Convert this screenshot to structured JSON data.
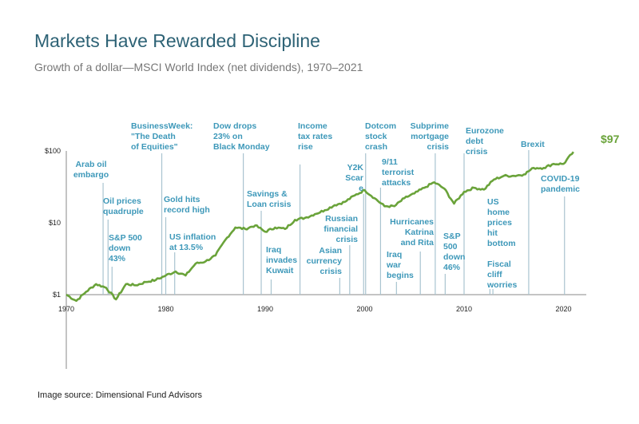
{
  "title": "Markets Have Rewarded Discipline",
  "subtitle": "Growth of a dollar—MSCI World Index (net dividends), 1970–2021",
  "source": "Image source: Dimensional Fund Advisors",
  "chart_data": {
    "type": "line",
    "yscale": "log",
    "ylim": [
      1,
      100
    ],
    "xlim": [
      1970,
      2022
    ],
    "y_ticks": [
      "$1",
      "$10",
      "$100"
    ],
    "x_ticks": [
      "1970",
      "1980",
      "1990",
      "2000",
      "2010",
      "2020"
    ],
    "line_color": "#6aa33a",
    "annotation_color": "#3d98b9",
    "final_label": "$97",
    "x": [
      1970,
      1971,
      1972,
      1973,
      1974,
      1975,
      1976,
      1977,
      1978,
      1979,
      1980,
      1981,
      1982,
      1983,
      1984,
      1985,
      1986,
      1987,
      1988,
      1989,
      1990,
      1991,
      1992,
      1993,
      1994,
      1995,
      1996,
      1997,
      1998,
      1999,
      2000,
      2001,
      2002,
      2003,
      2004,
      2005,
      2006,
      2007,
      2008,
      2009,
      2010,
      2011,
      2012,
      2013,
      2014,
      2015,
      2016,
      2017,
      2018,
      2019,
      2020,
      2021
    ],
    "values": [
      1,
      0.82,
      1.1,
      1.4,
      1.25,
      0.86,
      1.4,
      1.35,
      1.5,
      1.6,
      1.85,
      2.1,
      1.85,
      2.7,
      2.9,
      3.5,
      5.8,
      8.6,
      8.2,
      9.2,
      7.5,
      8.6,
      8.2,
      11,
      11.7,
      13.2,
      15,
      17.6,
      19.5,
      24,
      28.5,
      22,
      17,
      17,
      22,
      25.6,
      30.7,
      36.6,
      30,
      18.5,
      27,
      30.7,
      29,
      40,
      45,
      45,
      47,
      58,
      58,
      66,
      66,
      97
    ],
    "events": [
      {
        "year": 1973.7,
        "label": "Arab oil\nembargo"
      },
      {
        "year": 1974.2,
        "label": "Oil prices\nquadruple"
      },
      {
        "year": 1974.6,
        "label": "S&P 500\ndown\n43%"
      },
      {
        "year": 1979.6,
        "label": "BusinessWeek:\n\"The Death\nof Equities\""
      },
      {
        "year": 1980.0,
        "label": "Gold hits\nrecord high"
      },
      {
        "year": 1980.9,
        "label": "US inflation\nat 13.5%"
      },
      {
        "year": 1987.8,
        "label": "Dow drops\n23% on\nBlack Monday"
      },
      {
        "year": 1989.6,
        "label": "Savings &\nLoan crisis"
      },
      {
        "year": 1990.6,
        "label": "Iraq\ninvades\nKuwait"
      },
      {
        "year": 1993.5,
        "label": "Income\ntax rates\nrise"
      },
      {
        "year": 1997.5,
        "label": "Asian\ncurrency\ncrisis"
      },
      {
        "year": 1998.5,
        "label": "Russian\nfinancial\ncrisis"
      },
      {
        "year": 1999.9,
        "label": "Y2K\nScar\ne"
      },
      {
        "year": 2000.1,
        "label": "Dotcom\nstock\ncrash"
      },
      {
        "year": 2001.6,
        "label": "9/11\nterrorist\nattacks"
      },
      {
        "year": 2003.2,
        "label": "Iraq\nwar\nbegins"
      },
      {
        "year": 2005.6,
        "label": "Hurricanes\nKatrina\nand Rita"
      },
      {
        "year": 2007.1,
        "label": "Subprime\nmortgage\ncrisis"
      },
      {
        "year": 2008.1,
        "label": "S&P\n500\ndown\n46%"
      },
      {
        "year": 2010.0,
        "label": "Eurozone\ndebt\ncrisis"
      },
      {
        "year": 2012.6,
        "label": "US\nhome\nprices\nhit\nbottom"
      },
      {
        "year": 2012.9,
        "label": "Fiscal\ncliff\nworries"
      },
      {
        "year": 2016.5,
        "label": "Brexit"
      },
      {
        "year": 2020.1,
        "label": "COVID-19\npandemic"
      }
    ]
  }
}
